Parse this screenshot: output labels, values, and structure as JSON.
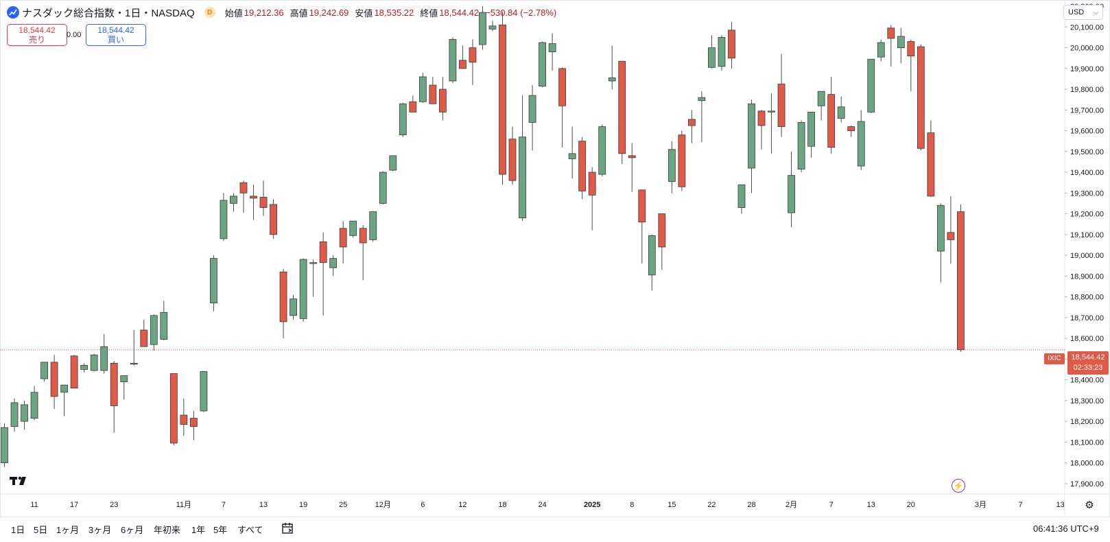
{
  "header": {
    "symbol_title": "ナスダック総合指数・1日・NASDAQ",
    "interval_badge": "D",
    "open_label": "始値",
    "open_value": "19,212.36",
    "high_label": "高値",
    "high_value": "19,242.69",
    "low_label": "安値",
    "low_value": "18,535.22",
    "close_label": "終値",
    "close_value": "18,544.42",
    "change": "−530.84 (−2.78%)",
    "currency": "USD"
  },
  "trade": {
    "sell_price": "18,544.42",
    "sell_label": "売り",
    "spread": "0.00",
    "buy_price": "18,544.42",
    "buy_label": "買い"
  },
  "last_price": {
    "symbol": "IXIC",
    "price": "18,544.42",
    "countdown": "02:33:23"
  },
  "bottom": {
    "ranges": [
      "1日",
      "5日",
      "1ヶ月",
      "3ヶ月",
      "6ヶ月",
      "年初来",
      "1年",
      "5年",
      "すべて"
    ],
    "clock": "06:41:36 UTC+9"
  },
  "colors": {
    "up": "#6ba583",
    "down": "#e05a48",
    "last_line": "#e05a48",
    "grid": "#f0f3fa",
    "text": "#131722"
  },
  "icons": {
    "logo": "tradingview-logo",
    "bolt": "lightning-icon",
    "settings": "gear-icon",
    "calendar": "calendar-goto-icon",
    "symbol": "chart-line-icon"
  },
  "chart_data": {
    "type": "candlestick",
    "title": "ナスダック総合指数・1日・NASDAQ",
    "y_range": [
      17850,
      20230
    ],
    "y_ticks": [
      17900,
      18000,
      18100,
      18200,
      18300,
      18400,
      18500,
      18600,
      18700,
      18800,
      18900,
      19000,
      19100,
      19200,
      19300,
      19400,
      19500,
      19600,
      19700,
      19800,
      19900,
      20000,
      20100,
      20200
    ],
    "x_ticks": [
      {
        "label": "11",
        "index": 3
      },
      {
        "label": "17",
        "index": 7
      },
      {
        "label": "23",
        "index": 11
      },
      {
        "label": "11月",
        "index": 18
      },
      {
        "label": "7",
        "index": 22
      },
      {
        "label": "13",
        "index": 26
      },
      {
        "label": "19",
        "index": 30
      },
      {
        "label": "25",
        "index": 34
      },
      {
        "label": "12月",
        "index": 38
      },
      {
        "label": "6",
        "index": 42
      },
      {
        "label": "12",
        "index": 46
      },
      {
        "label": "18",
        "index": 50
      },
      {
        "label": "24",
        "index": 54
      },
      {
        "label": "2025",
        "index": 59
      },
      {
        "label": "8",
        "index": 63
      },
      {
        "label": "15",
        "index": 67
      },
      {
        "label": "22",
        "index": 71
      },
      {
        "label": "28",
        "index": 75
      },
      {
        "label": "2月",
        "index": 79
      },
      {
        "label": "7",
        "index": 83
      },
      {
        "label": "13",
        "index": 87
      },
      {
        "label": "20",
        "index": 91
      },
      {
        "label": "3月",
        "index": 98
      },
      {
        "label": "7",
        "index": 102
      },
      {
        "label": "13",
        "index": 106
      }
    ],
    "last_close": 18544.42,
    "candles": [
      {
        "o": 18000,
        "h": 18190,
        "l": 17980,
        "c": 18170
      },
      {
        "o": 18175,
        "h": 18310,
        "l": 18150,
        "c": 18290
      },
      {
        "o": 18200,
        "h": 18300,
        "l": 18160,
        "c": 18280
      },
      {
        "o": 18215,
        "h": 18370,
        "l": 18205,
        "c": 18340
      },
      {
        "o": 18405,
        "h": 18480,
        "l": 18390,
        "c": 18485
      },
      {
        "o": 18485,
        "h": 18520,
        "l": 18260,
        "c": 18320
      },
      {
        "o": 18340,
        "h": 18375,
        "l": 18225,
        "c": 18375
      },
      {
        "o": 18515,
        "h": 18520,
        "l": 18360,
        "c": 18360
      },
      {
        "o": 18450,
        "h": 18480,
        "l": 18435,
        "c": 18470
      },
      {
        "o": 18445,
        "h": 18525,
        "l": 18440,
        "c": 18520
      },
      {
        "o": 18445,
        "h": 18620,
        "l": 18430,
        "c": 18560
      },
      {
        "o": 18480,
        "h": 18490,
        "l": 18145,
        "c": 18275
      },
      {
        "o": 18390,
        "h": 18420,
        "l": 18305,
        "c": 18420
      },
      {
        "o": 18475,
        "h": 18640,
        "l": 18470,
        "c": 18480
      },
      {
        "o": 18640,
        "h": 18690,
        "l": 18580,
        "c": 18560
      },
      {
        "o": 18570,
        "h": 18715,
        "l": 18540,
        "c": 18710
      },
      {
        "o": 18595,
        "h": 18780,
        "l": 18590,
        "c": 18725
      },
      {
        "o": 18430,
        "h": 18430,
        "l": 18085,
        "c": 18095
      },
      {
        "o": 18230,
        "h": 18310,
        "l": 18130,
        "c": 18185
      },
      {
        "o": 18215,
        "h": 18250,
        "l": 18110,
        "c": 18175
      },
      {
        "o": 18250,
        "h": 18440,
        "l": 18245,
        "c": 18440
      },
      {
        "o": 18770,
        "h": 19000,
        "l": 18730,
        "c": 18985
      },
      {
        "o": 19080,
        "h": 19300,
        "l": 19070,
        "c": 19265
      },
      {
        "o": 19250,
        "h": 19300,
        "l": 19210,
        "c": 19285
      },
      {
        "o": 19350,
        "h": 19360,
        "l": 19205,
        "c": 19300
      },
      {
        "o": 19285,
        "h": 19340,
        "l": 19170,
        "c": 19275
      },
      {
        "o": 19280,
        "h": 19360,
        "l": 19190,
        "c": 19230
      },
      {
        "o": 19245,
        "h": 19270,
        "l": 19080,
        "c": 19100
      },
      {
        "o": 18920,
        "h": 18935,
        "l": 18600,
        "c": 18680
      },
      {
        "o": 18710,
        "h": 18810,
        "l": 18690,
        "c": 18790
      },
      {
        "o": 18695,
        "h": 18985,
        "l": 18680,
        "c": 18980
      },
      {
        "o": 18965,
        "h": 18980,
        "l": 18800,
        "c": 18965
      },
      {
        "o": 19065,
        "h": 19110,
        "l": 18710,
        "c": 18965
      },
      {
        "o": 18940,
        "h": 19000,
        "l": 18900,
        "c": 18985
      },
      {
        "o": 19130,
        "h": 19165,
        "l": 18960,
        "c": 19040
      },
      {
        "o": 19095,
        "h": 19165,
        "l": 19085,
        "c": 19165
      },
      {
        "o": 19130,
        "h": 19145,
        "l": 18880,
        "c": 19060
      },
      {
        "o": 19075,
        "h": 19210,
        "l": 19065,
        "c": 19210
      },
      {
        "o": 19250,
        "h": 19405,
        "l": 19245,
        "c": 19400
      },
      {
        "o": 19410,
        "h": 19480,
        "l": 19405,
        "c": 19480
      },
      {
        "o": 19580,
        "h": 19735,
        "l": 19570,
        "c": 19730
      },
      {
        "o": 19740,
        "h": 19770,
        "l": 19690,
        "c": 19690
      },
      {
        "o": 19740,
        "h": 19880,
        "l": 19735,
        "c": 19860
      },
      {
        "o": 19820,
        "h": 19860,
        "l": 19730,
        "c": 19730
      },
      {
        "o": 19800,
        "h": 19860,
        "l": 19650,
        "c": 19690
      },
      {
        "o": 19840,
        "h": 20050,
        "l": 19830,
        "c": 20040
      },
      {
        "o": 19940,
        "h": 20010,
        "l": 19900,
        "c": 19900
      },
      {
        "o": 20000,
        "h": 20040,
        "l": 19820,
        "c": 19930
      },
      {
        "o": 20015,
        "h": 20200,
        "l": 19990,
        "c": 20170
      },
      {
        "o": 20090,
        "h": 20130,
        "l": 20080,
        "c": 20105
      },
      {
        "o": 20110,
        "h": 20175,
        "l": 19340,
        "c": 19390
      },
      {
        "o": 19560,
        "h": 19620,
        "l": 19340,
        "c": 19360
      },
      {
        "o": 19180,
        "h": 19770,
        "l": 19165,
        "c": 19570
      },
      {
        "o": 19640,
        "h": 19820,
        "l": 19505,
        "c": 19770
      },
      {
        "o": 19815,
        "h": 20030,
        "l": 19810,
        "c": 20025
      },
      {
        "o": 19980,
        "h": 20070,
        "l": 19890,
        "c": 20020
      },
      {
        "o": 19900,
        "h": 19905,
        "l": 19520,
        "c": 19720
      },
      {
        "o": 19465,
        "h": 19620,
        "l": 19370,
        "c": 19490
      },
      {
        "o": 19550,
        "h": 19570,
        "l": 19270,
        "c": 19310
      },
      {
        "o": 19400,
        "h": 19425,
        "l": 19120,
        "c": 19290
      },
      {
        "o": 19390,
        "h": 19630,
        "l": 19380,
        "c": 19620
      },
      {
        "o": 19840,
        "h": 20010,
        "l": 19800,
        "c": 19855
      },
      {
        "o": 19935,
        "h": 19935,
        "l": 19440,
        "c": 19490
      },
      {
        "o": 19480,
        "h": 19540,
        "l": 19305,
        "c": 19470
      },
      {
        "o": 19315,
        "h": 19315,
        "l": 18960,
        "c": 19160
      },
      {
        "o": 18905,
        "h": 19100,
        "l": 18830,
        "c": 19095
      },
      {
        "o": 19200,
        "h": 19200,
        "l": 18930,
        "c": 19040
      },
      {
        "o": 19355,
        "h": 19550,
        "l": 19300,
        "c": 19510
      },
      {
        "o": 19580,
        "h": 19600,
        "l": 19310,
        "c": 19330
      },
      {
        "o": 19655,
        "h": 19700,
        "l": 19540,
        "c": 19625
      },
      {
        "o": 19745,
        "h": 19790,
        "l": 19545,
        "c": 19760
      },
      {
        "o": 19905,
        "h": 20060,
        "l": 19900,
        "c": 20000
      },
      {
        "o": 19910,
        "h": 20060,
        "l": 19890,
        "c": 20050
      },
      {
        "o": 20085,
        "h": 20125,
        "l": 19900,
        "c": 19950
      },
      {
        "o": 19230,
        "h": 19340,
        "l": 19200,
        "c": 19340
      },
      {
        "o": 19420,
        "h": 19750,
        "l": 19300,
        "c": 19730
      },
      {
        "o": 19695,
        "h": 19700,
        "l": 19510,
        "c": 19625
      },
      {
        "o": 19690,
        "h": 19780,
        "l": 19490,
        "c": 19695
      },
      {
        "o": 19825,
        "h": 19970,
        "l": 19570,
        "c": 19620
      },
      {
        "o": 19205,
        "h": 19500,
        "l": 19135,
        "c": 19385
      },
      {
        "o": 19415,
        "h": 19650,
        "l": 19400,
        "c": 19640
      },
      {
        "o": 19525,
        "h": 19690,
        "l": 19470,
        "c": 19690
      },
      {
        "o": 19720,
        "h": 19790,
        "l": 19650,
        "c": 19790
      },
      {
        "o": 19775,
        "h": 19860,
        "l": 19490,
        "c": 19520
      },
      {
        "o": 19660,
        "h": 19765,
        "l": 19640,
        "c": 19715
      },
      {
        "o": 19620,
        "h": 19625,
        "l": 19570,
        "c": 19600
      },
      {
        "o": 19430,
        "h": 19700,
        "l": 19410,
        "c": 19645
      },
      {
        "o": 19690,
        "h": 19945,
        "l": 19685,
        "c": 19945
      },
      {
        "o": 19955,
        "h": 20040,
        "l": 19935,
        "c": 20025
      },
      {
        "o": 20095,
        "h": 20110,
        "l": 19910,
        "c": 20045
      },
      {
        "o": 20000,
        "h": 20095,
        "l": 19925,
        "c": 20055
      },
      {
        "o": 20030,
        "h": 20040,
        "l": 19790,
        "c": 19960
      },
      {
        "o": 20005,
        "h": 20015,
        "l": 19505,
        "c": 19515
      },
      {
        "o": 19590,
        "h": 19650,
        "l": 19280,
        "c": 19285
      },
      {
        "o": 19020,
        "h": 19250,
        "l": 18870,
        "c": 19240
      },
      {
        "o": 19110,
        "h": 19285,
        "l": 18960,
        "c": 19075
      },
      {
        "o": 19210,
        "h": 19245,
        "l": 18535,
        "c": 18545
      }
    ]
  }
}
